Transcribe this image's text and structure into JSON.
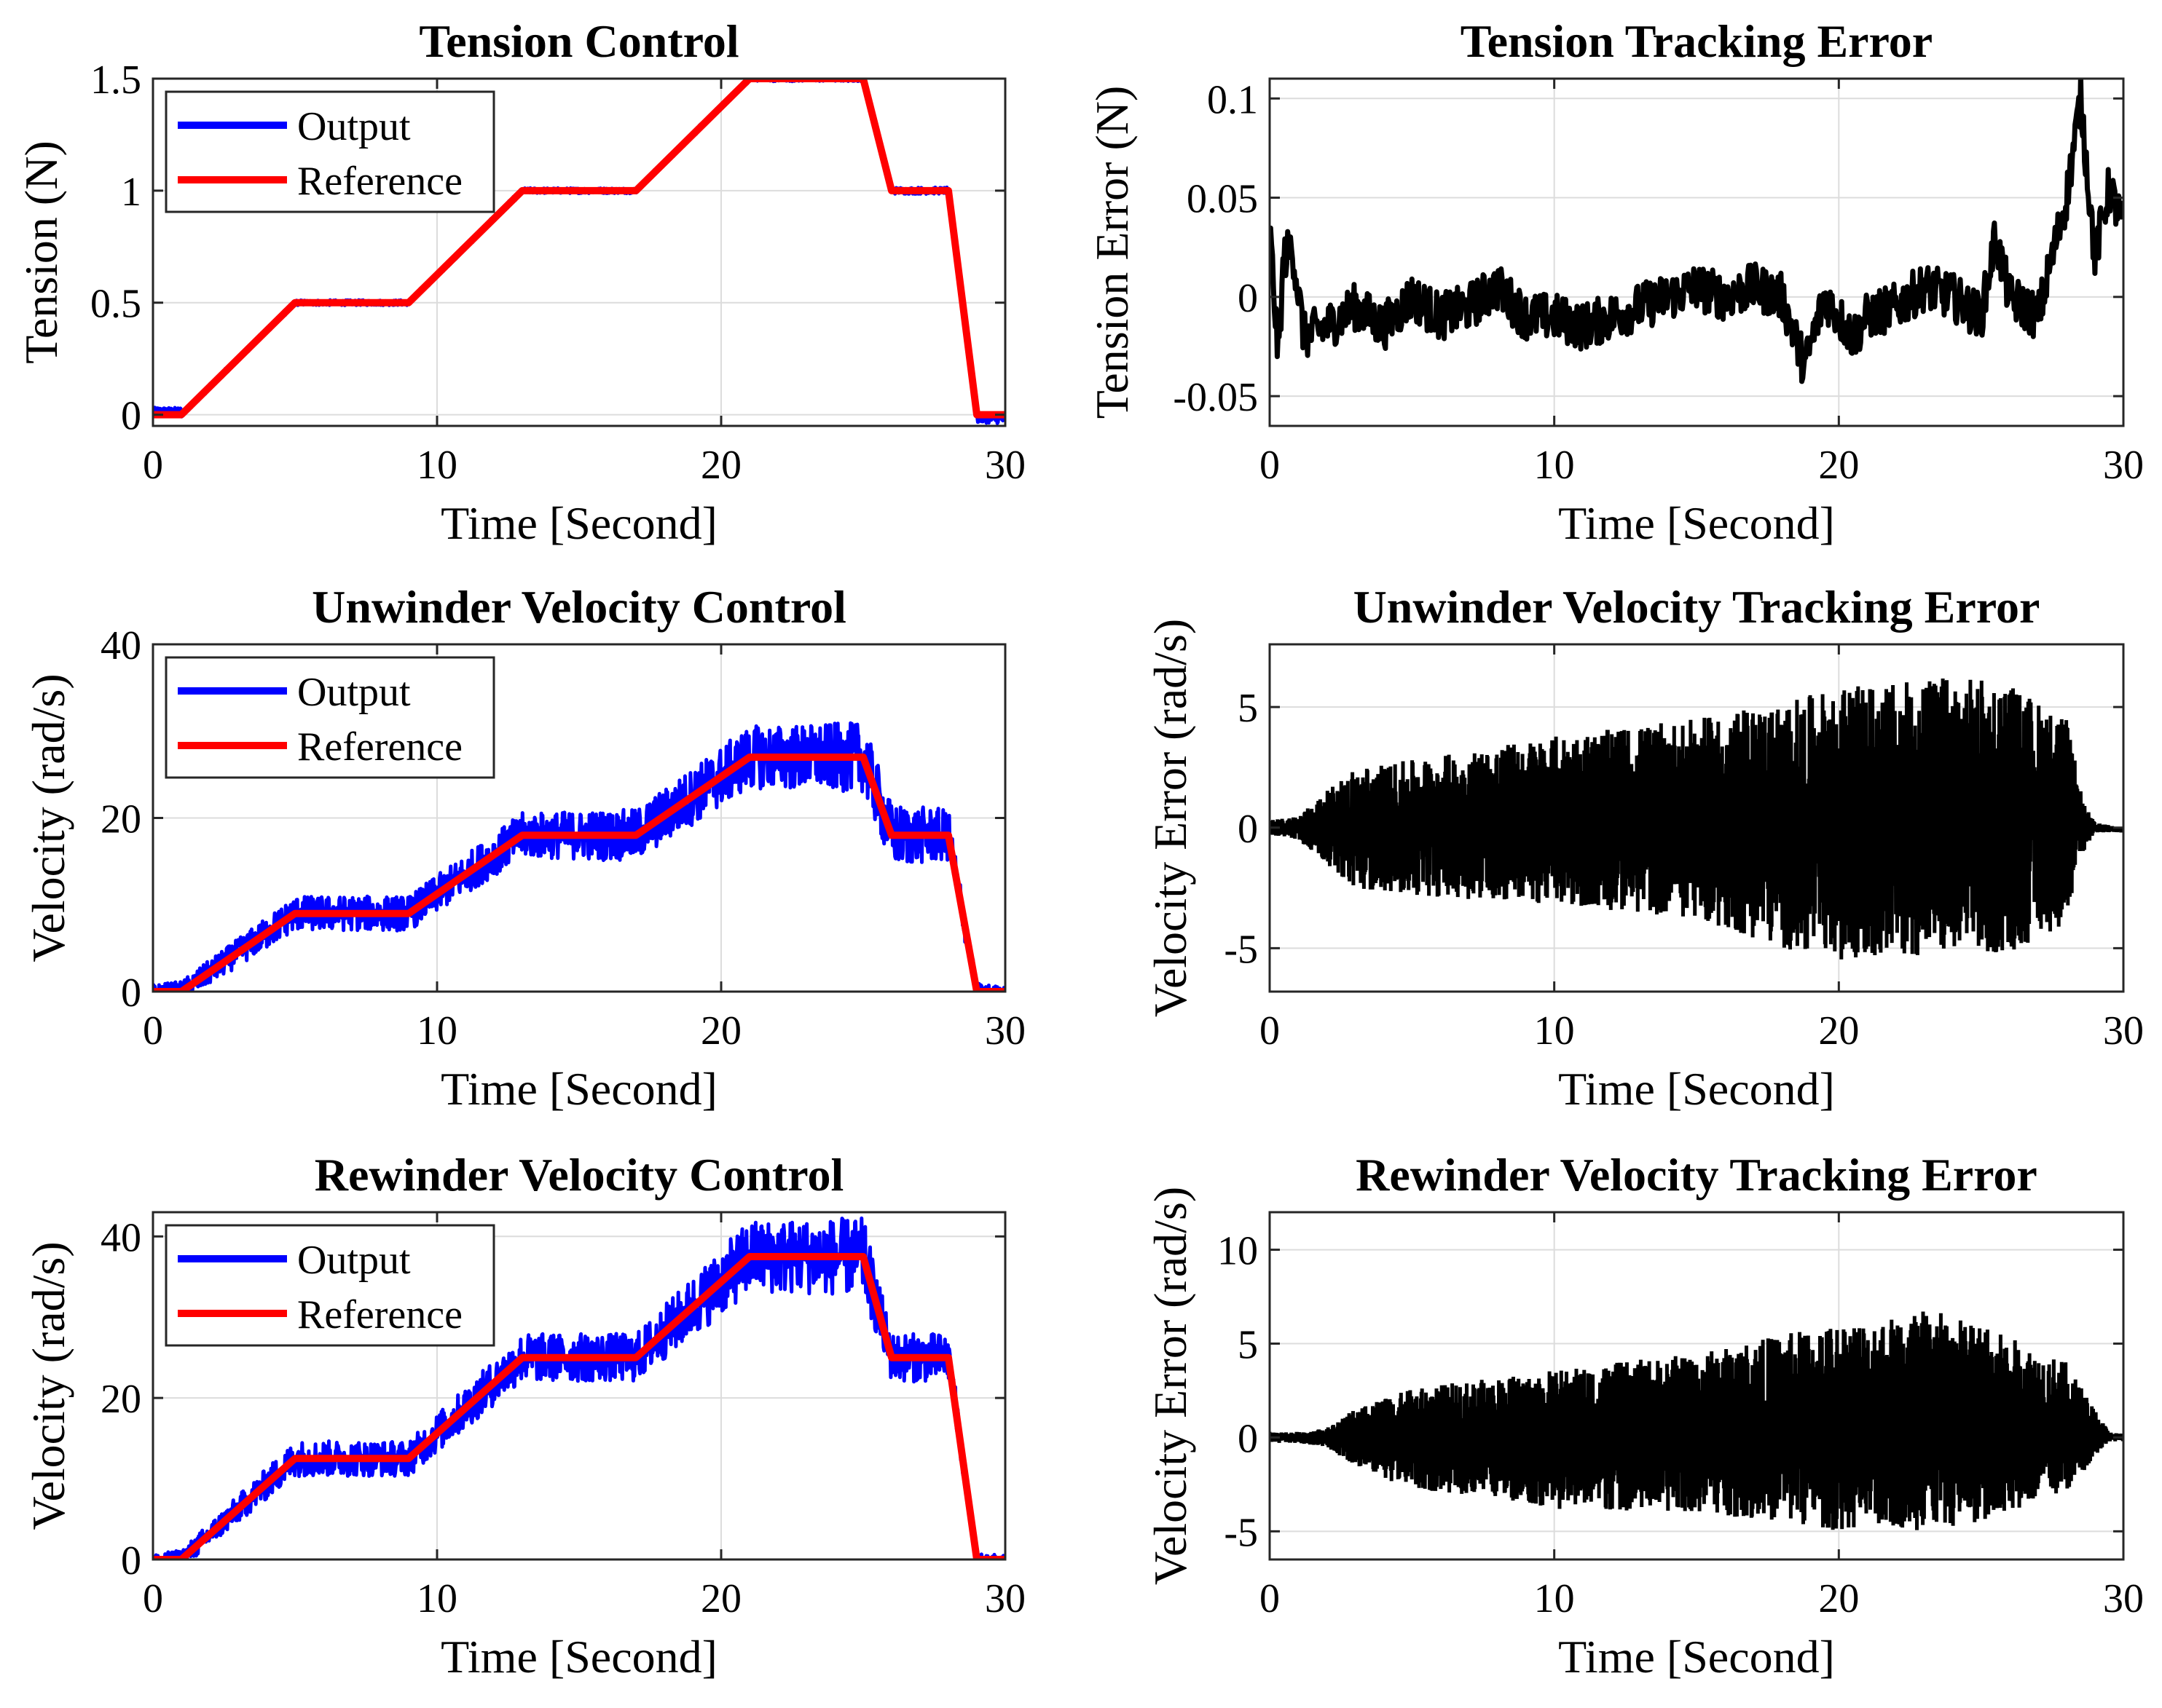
{
  "figure": {
    "colors": {
      "output": "#0000ff",
      "reference": "#ff0000",
      "error": "#000000",
      "grid": "#dcdcdc"
    }
  },
  "chart_data": [
    {
      "id": "tension-control",
      "type": "line",
      "title": "Tension Control",
      "xlabel": "Time [Second]",
      "ylabel": "Tension (N)",
      "xlim": [
        0,
        30
      ],
      "ylim": [
        -0.05,
        1.5
      ],
      "xticks": [
        0,
        10,
        20,
        30
      ],
      "yticks": [
        0,
        0.5,
        1,
        1.5
      ],
      "yticklabels": [
        "0",
        "0.5",
        "1",
        "1.5"
      ],
      "grid": true,
      "legend": {
        "position": "top-left",
        "entries": [
          "Output",
          "Reference"
        ]
      },
      "series": [
        {
          "name": "Reference",
          "color": "#ff0000",
          "x": [
            0,
            1,
            5,
            9,
            13,
            17,
            21,
            25,
            26,
            28,
            29,
            30
          ],
          "y": [
            0,
            0,
            0.5,
            0.5,
            1,
            1,
            1.5,
            1.5,
            1,
            1,
            0,
            0
          ]
        },
        {
          "name": "Output",
          "color": "#0000ff",
          "noise": {
            "amp": [
              0.012,
              0.012,
              0.012,
              0.012,
              0.012,
              0.012,
              0.012,
              0.012,
              0.015,
              0.015,
              0.015,
              0.02
            ],
            "start_offset": 0.02,
            "end_offset": -0.02
          }
        }
      ]
    },
    {
      "id": "tension-error",
      "type": "line",
      "title": "Tension Tracking Error",
      "xlabel": "Time [Second]",
      "ylabel": "Tension Error (N)",
      "xlim": [
        0,
        30
      ],
      "ylim": [
        -0.065,
        0.11
      ],
      "xticks": [
        0,
        10,
        20,
        30
      ],
      "yticks": [
        -0.05,
        0,
        0.05,
        0.1
      ],
      "yticklabels": [
        "-0.05",
        "0",
        "0.05",
        "0.1"
      ],
      "grid": true,
      "series": [
        {
          "name": "Error",
          "color": "#000000",
          "x": [
            0,
            0.3,
            0.5,
            0.8,
            1.2,
            2,
            3,
            4,
            5,
            6,
            7,
            8,
            9,
            10,
            11,
            12,
            13,
            14,
            15,
            16,
            17,
            18,
            18.8,
            19.5,
            20.5,
            21,
            22,
            23,
            24,
            25,
            25.5,
            26,
            27,
            27.5,
            28,
            28.5,
            29,
            29.5,
            30
          ],
          "y": [
            0.035,
            -0.03,
            0.02,
            0.025,
            -0.02,
            -0.015,
            -0.005,
            -0.015,
            0.0,
            -0.01,
            -0.005,
            0.005,
            -0.01,
            -0.01,
            -0.015,
            -0.01,
            -0.005,
            0.0,
            0.005,
            0.0,
            0.005,
            0.0,
            -0.035,
            0.0,
            -0.02,
            -0.01,
            -0.005,
            0.005,
            0.0,
            -0.01,
            0.03,
            0.0,
            -0.01,
            0.02,
            0.05,
            0.1,
            0.02,
            0.055,
            0.035
          ],
          "noise_amp": 0.012
        }
      ]
    },
    {
      "id": "unwinder-control",
      "type": "line",
      "title": "Unwinder Velocity Control",
      "xlabel": "Time [Second]",
      "ylabel": "Velocity (rad/s)",
      "xlim": [
        0,
        30
      ],
      "ylim": [
        0,
        40
      ],
      "xticks": [
        0,
        10,
        20,
        30
      ],
      "yticks": [
        0,
        20,
        40
      ],
      "yticklabels": [
        "0",
        "20",
        "40"
      ],
      "grid": true,
      "legend": {
        "position": "top-left",
        "entries": [
          "Output",
          "Reference"
        ]
      },
      "series": [
        {
          "name": "Reference",
          "color": "#ff0000",
          "x": [
            0,
            1,
            5,
            9,
            13,
            17,
            21,
            25,
            26,
            28,
            29,
            30
          ],
          "y": [
            0,
            0,
            9,
            9,
            18,
            18,
            27,
            27,
            18,
            18,
            0,
            0
          ]
        },
        {
          "name": "Output",
          "color": "#0000ff",
          "noise": {
            "amp": [
              0.8,
              1.2,
              2.0,
              2.0,
              2.6,
              3.0,
              3.6,
              4.0,
              3.6,
              3.0,
              1.0,
              0.5
            ]
          }
        }
      ]
    },
    {
      "id": "unwinder-error",
      "type": "line",
      "title": "Unwinder Velocity Tracking Error",
      "xlabel": "Time [Second]",
      "ylabel": "Velocity Error (rad/s)",
      "xlim": [
        0,
        30
      ],
      "ylim": [
        -6.8,
        7.6
      ],
      "xticks": [
        0,
        10,
        20,
        30
      ],
      "yticks": [
        -5,
        0,
        5
      ],
      "yticklabels": [
        "-5",
        "0",
        "5"
      ],
      "grid": true,
      "series": [
        {
          "name": "Error",
          "color": "#000000",
          "envelope": {
            "x": [
              0,
              1,
              3,
              5,
              10,
              15,
              18,
              20,
              22,
              24,
              26,
              28,
              28.6,
              29,
              30
            ],
            "upper": [
              0.3,
              0.5,
              2.5,
              2.8,
              3.8,
              4.5,
              5.2,
              5.8,
              6.0,
              6.3,
              6.0,
              4.5,
              1.0,
              0.2,
              0.0
            ],
            "lower": [
              -0.3,
              -0.5,
              -2.5,
              -2.8,
              -3.2,
              -3.8,
              -5.0,
              -5.5,
              -5.2,
              -5.5,
              -5.2,
              -4.0,
              -1.0,
              -0.2,
              -0.2
            ]
          }
        }
      ]
    },
    {
      "id": "rewinder-control",
      "type": "line",
      "title": "Rewinder Velocity Control",
      "xlabel": "Time [Second]",
      "ylabel": "Velocity (rad/s)",
      "xlim": [
        0,
        30
      ],
      "ylim": [
        0,
        43
      ],
      "xticks": [
        0,
        10,
        20,
        30
      ],
      "yticks": [
        0,
        20,
        40
      ],
      "yticklabels": [
        "0",
        "20",
        "40"
      ],
      "grid": true,
      "legend": {
        "position": "top-left",
        "entries": [
          "Output",
          "Reference"
        ]
      },
      "series": [
        {
          "name": "Reference",
          "color": "#ff0000",
          "x": [
            0,
            1,
            5,
            9,
            13,
            17,
            21,
            25,
            26,
            28,
            29,
            30
          ],
          "y": [
            0,
            0,
            12.5,
            12.5,
            25,
            25,
            37.5,
            37.5,
            25,
            25,
            0,
            0
          ]
        },
        {
          "name": "Output",
          "color": "#0000ff",
          "noise": {
            "amp": [
              0.6,
              1.2,
              2.2,
              2.2,
              3.0,
              3.0,
              4.5,
              4.8,
              3.0,
              3.0,
              0.8,
              0.5
            ]
          }
        }
      ]
    },
    {
      "id": "rewinder-error",
      "type": "line",
      "title": "Rewinder Velocity Tracking Error",
      "xlabel": "Time [Second]",
      "ylabel": "Velocity Error (rad/s)",
      "xlim": [
        0,
        30
      ],
      "ylim": [
        -6.5,
        12
      ],
      "xticks": [
        0,
        10,
        20,
        30
      ],
      "yticks": [
        -5,
        0,
        5,
        10
      ],
      "yticklabels": [
        "-5",
        "0",
        "5",
        "10"
      ],
      "grid": true,
      "series": [
        {
          "name": "Error",
          "color": "#000000",
          "envelope": {
            "x": [
              0,
              1,
              2,
              3,
              5,
              8,
              10,
              15,
              18,
              20,
              22,
              23,
              25,
              28,
              29,
              29.5,
              30
            ],
            "upper": [
              0.3,
              0.3,
              0.5,
              1.5,
              2.6,
              3.2,
              3.6,
              4.5,
              5.5,
              6.2,
              6.5,
              7.0,
              6.0,
              4.0,
              1.5,
              0.3,
              0.2
            ],
            "lower": [
              -0.3,
              -0.3,
              -0.5,
              -1.5,
              -2.8,
              -3.2,
              -3.8,
              -4.0,
              -4.5,
              -5.0,
              -4.8,
              -5.0,
              -4.5,
              -3.0,
              -1.0,
              -0.2,
              -0.2
            ]
          }
        }
      ]
    }
  ]
}
